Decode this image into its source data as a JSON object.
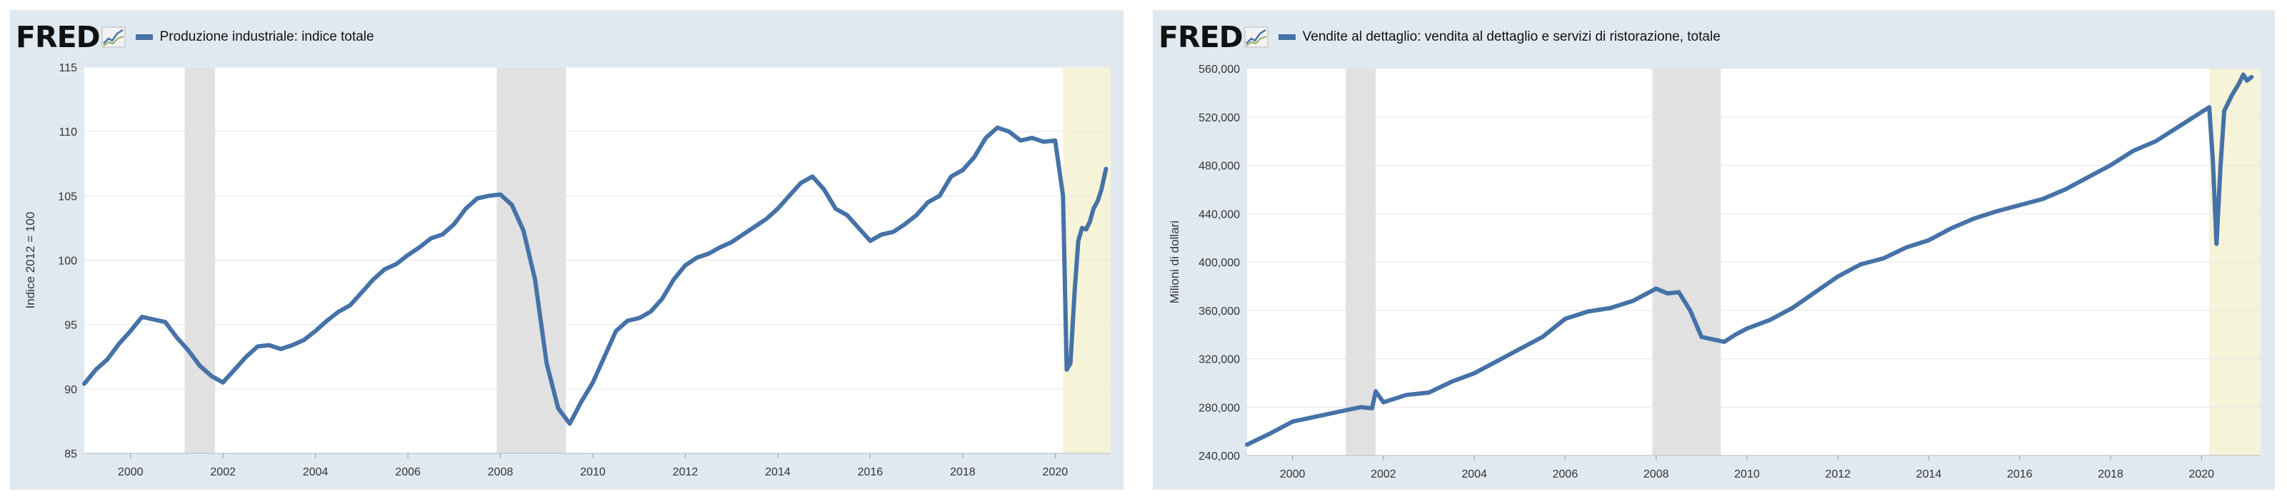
{
  "brand": {
    "logo_text": "FRED",
    "logo_icon": "line-chart-icon"
  },
  "colors": {
    "series": "#4572a7",
    "recession": "#e1e1e1",
    "covid_band": "#f5f3d8",
    "panel_bg": "#e1e9f0"
  },
  "chart_data": [
    {
      "type": "line",
      "legend": "Produzione industriale: indice totale",
      "ylabel": "Indice 2012 = 100",
      "xlim": [
        1999.0,
        2021.2
      ],
      "ylim": [
        85,
        115
      ],
      "yticks": [
        85,
        90,
        95,
        100,
        105,
        110,
        115
      ],
      "ytick_labels": [
        "85",
        "90",
        "95",
        "100",
        "105",
        "110",
        "115"
      ],
      "xticks": [
        2000,
        2002,
        2004,
        2006,
        2008,
        2010,
        2012,
        2014,
        2016,
        2018,
        2020
      ],
      "xtick_labels": [
        "2000",
        "2002",
        "2004",
        "2006",
        "2008",
        "2010",
        "2012",
        "2014",
        "2016",
        "2018",
        "2020"
      ],
      "recessions": [
        [
          2001.17,
          2001.83
        ],
        [
          2007.92,
          2009.42
        ]
      ],
      "highlight": [
        2020.17,
        2021.2
      ],
      "x": [
        1999.0,
        1999.25,
        1999.5,
        1999.75,
        2000.0,
        2000.25,
        2000.5,
        2000.75,
        2001.0,
        2001.25,
        2001.5,
        2001.75,
        2002.0,
        2002.25,
        2002.5,
        2002.75,
        2003.0,
        2003.25,
        2003.5,
        2003.75,
        2004.0,
        2004.25,
        2004.5,
        2004.75,
        2005.0,
        2005.25,
        2005.5,
        2005.75,
        2006.0,
        2006.25,
        2006.5,
        2006.75,
        2007.0,
        2007.25,
        2007.5,
        2007.75,
        2008.0,
        2008.25,
        2008.5,
        2008.75,
        2009.0,
        2009.25,
        2009.5,
        2009.75,
        2010.0,
        2010.25,
        2010.5,
        2010.75,
        2011.0,
        2011.25,
        2011.5,
        2011.75,
        2012.0,
        2012.25,
        2012.5,
        2012.75,
        2013.0,
        2013.25,
        2013.5,
        2013.75,
        2014.0,
        2014.25,
        2014.5,
        2014.75,
        2015.0,
        2015.25,
        2015.5,
        2015.75,
        2016.0,
        2016.25,
        2016.5,
        2016.75,
        2017.0,
        2017.25,
        2017.5,
        2017.75,
        2018.0,
        2018.25,
        2018.5,
        2018.75,
        2019.0,
        2019.25,
        2019.5,
        2019.75,
        2020.0,
        2020.17,
        2020.25,
        2020.33,
        2020.42,
        2020.5,
        2020.58,
        2020.67,
        2020.75,
        2020.83,
        2020.92,
        2021.0,
        2021.1
      ],
      "series": [
        {
          "values": [
            90.4,
            91.5,
            92.3,
            93.5,
            94.5,
            95.6,
            95.4,
            95.2,
            94.0,
            93.0,
            91.8,
            91.0,
            90.5,
            91.5,
            92.5,
            93.3,
            93.4,
            93.1,
            93.4,
            93.8,
            94.5,
            95.3,
            96.0,
            96.5,
            97.5,
            98.5,
            99.3,
            99.7,
            100.4,
            101.0,
            101.7,
            102.0,
            102.8,
            104.0,
            104.8,
            105.0,
            105.1,
            104.3,
            102.3,
            98.5,
            92.0,
            88.5,
            87.3,
            89.0,
            90.5,
            92.5,
            94.5,
            95.3,
            95.5,
            96.0,
            97.0,
            98.5,
            99.6,
            100.2,
            100.5,
            101.0,
            101.4,
            102.0,
            102.6,
            103.2,
            104.0,
            105.0,
            106.0,
            106.5,
            105.5,
            104.0,
            103.5,
            102.5,
            101.5,
            102.0,
            102.2,
            102.8,
            103.5,
            104.5,
            105.0,
            106.5,
            107.0,
            108.0,
            109.5,
            110.3,
            110.0,
            109.3,
            109.5,
            109.2,
            109.3,
            105.0,
            91.5,
            92.0,
            97.5,
            101.5,
            102.5,
            102.4,
            103.0,
            104.0,
            104.6,
            105.5,
            107.1
          ]
        }
      ]
    },
    {
      "type": "line",
      "legend": "Vendite al dettaglio: vendita al dettaglio e servizi di ristorazione, totale",
      "ylabel": "Milioni di dollari",
      "xlim": [
        1999.0,
        2021.3
      ],
      "ylim": [
        240000,
        560000
      ],
      "yticks": [
        240000,
        280000,
        320000,
        360000,
        400000,
        440000,
        480000,
        520000,
        560000
      ],
      "ytick_labels": [
        "240,000",
        "280,000",
        "320,000",
        "360,000",
        "400,000",
        "440,000",
        "480,000",
        "520,000",
        "560,000"
      ],
      "xticks": [
        2000,
        2002,
        2004,
        2006,
        2008,
        2010,
        2012,
        2014,
        2016,
        2018,
        2020
      ],
      "xtick_labels": [
        "2000",
        "2002",
        "2004",
        "2006",
        "2008",
        "2010",
        "2012",
        "2014",
        "2016",
        "2018",
        "2020"
      ],
      "recessions": [
        [
          2001.17,
          2001.83
        ],
        [
          2007.92,
          2009.42
        ]
      ],
      "highlight": [
        2020.17,
        2021.3
      ],
      "x": [
        1999.0,
        1999.5,
        2000.0,
        2000.5,
        2001.0,
        2001.5,
        2001.75,
        2001.83,
        2002.0,
        2002.5,
        2003.0,
        2003.5,
        2004.0,
        2004.5,
        2005.0,
        2005.5,
        2006.0,
        2006.5,
        2007.0,
        2007.5,
        2008.0,
        2008.25,
        2008.5,
        2008.75,
        2009.0,
        2009.25,
        2009.5,
        2009.75,
        2010.0,
        2010.5,
        2011.0,
        2011.5,
        2012.0,
        2012.5,
        2013.0,
        2013.5,
        2014.0,
        2014.5,
        2015.0,
        2015.5,
        2016.0,
        2016.5,
        2017.0,
        2017.5,
        2018.0,
        2018.5,
        2019.0,
        2019.5,
        2020.0,
        2020.17,
        2020.25,
        2020.33,
        2020.42,
        2020.5,
        2020.67,
        2020.83,
        2020.92,
        2021.0,
        2021.1
      ],
      "series": [
        {
          "values": [
            249000,
            258000,
            268000,
            272000,
            276000,
            280000,
            279000,
            293000,
            284000,
            290000,
            292000,
            301000,
            308000,
            318000,
            328000,
            338000,
            353000,
            359000,
            362000,
            368000,
            378000,
            374000,
            375000,
            360000,
            338000,
            336000,
            334000,
            340000,
            345000,
            352000,
            362000,
            375000,
            388000,
            398000,
            403000,
            412000,
            418000,
            428000,
            436000,
            442000,
            447000,
            452000,
            460000,
            470000,
            480000,
            492000,
            500000,
            512000,
            524000,
            528000,
            484000,
            415000,
            480000,
            525000,
            538000,
            548000,
            555000,
            550000,
            553000
          ]
        }
      ]
    }
  ]
}
